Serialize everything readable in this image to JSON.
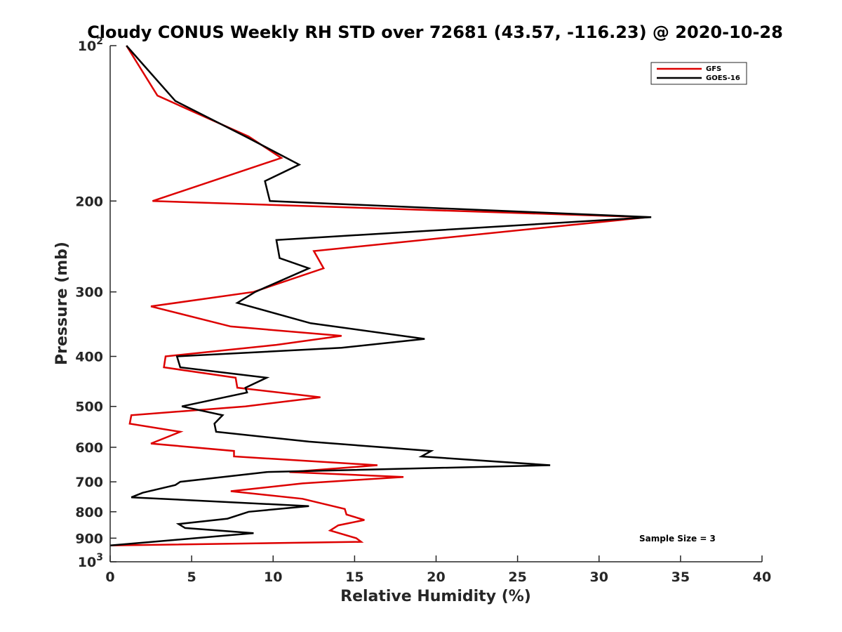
{
  "chart_data": {
    "type": "line",
    "title": "Cloudy CONUS Weekly RH STD over 72681 (43.57, -116.23) @ 2020-10-28",
    "xlabel": "Relative Humidity (%)",
    "ylabel": "Pressure (mb)",
    "xlim": [
      0,
      40
    ],
    "ylim": [
      100,
      1000
    ],
    "y_scale": "log",
    "y_reversed": true,
    "x_ticks": [
      "0",
      "5",
      "10",
      "15",
      "20",
      "25",
      "30",
      "35",
      "40"
    ],
    "y_ticks": [
      {
        "value": 100,
        "base": "10",
        "exp": "2"
      },
      {
        "value": 200,
        "label": "200"
      },
      {
        "value": 300,
        "label": "300"
      },
      {
        "value": 400,
        "label": "400"
      },
      {
        "value": 500,
        "label": "500"
      },
      {
        "value": 600,
        "label": "600"
      },
      {
        "value": 700,
        "label": "700"
      },
      {
        "value": 800,
        "label": "800"
      },
      {
        "value": 900,
        "label": "900"
      },
      {
        "value": 1000,
        "base": "10",
        "exp": "3"
      }
    ],
    "grid": false,
    "legend_position": "top-right",
    "annotation": "Sample Size = 3",
    "series": [
      {
        "name": "GFS",
        "color": "#dd0000",
        "points": [
          [
            1.0,
            100
          ],
          [
            2.9,
            125
          ],
          [
            8.5,
            150
          ],
          [
            10.5,
            165
          ],
          [
            2.6,
            200
          ],
          [
            33.0,
            215
          ],
          [
            12.5,
            250
          ],
          [
            13.1,
            270
          ],
          [
            8.8,
            300
          ],
          [
            2.5,
            320
          ],
          [
            7.4,
            350
          ],
          [
            14.2,
            365
          ],
          [
            10.2,
            380
          ],
          [
            3.4,
            400
          ],
          [
            3.3,
            420
          ],
          [
            7.7,
            440
          ],
          [
            7.8,
            460
          ],
          [
            12.9,
            480
          ],
          [
            8.3,
            500
          ],
          [
            1.3,
            520
          ],
          [
            1.2,
            540
          ],
          [
            4.3,
            560
          ],
          [
            2.5,
            590
          ],
          [
            7.6,
            610
          ],
          [
            7.6,
            625
          ],
          [
            16.4,
            650
          ],
          [
            11.0,
            670
          ],
          [
            18.0,
            685
          ],
          [
            11.8,
            705
          ],
          [
            7.4,
            730
          ],
          [
            11.8,
            755
          ],
          [
            14.4,
            790
          ],
          [
            14.5,
            810
          ],
          [
            15.6,
            830
          ],
          [
            14.0,
            850
          ],
          [
            13.5,
            870
          ],
          [
            15.1,
            900
          ],
          [
            15.4,
            915
          ],
          [
            0,
            930
          ]
        ]
      },
      {
        "name": "GOES-16",
        "color": "#000000",
        "points": [
          [
            1.0,
            100
          ],
          [
            4.0,
            128
          ],
          [
            8.3,
            150
          ],
          [
            11.6,
            170
          ],
          [
            9.5,
            183
          ],
          [
            9.8,
            200
          ],
          [
            33.2,
            215
          ],
          [
            10.2,
            238
          ],
          [
            10.4,
            258
          ],
          [
            12.2,
            270
          ],
          [
            8.9,
            300
          ],
          [
            7.8,
            315
          ],
          [
            12.3,
            345
          ],
          [
            19.3,
            370
          ],
          [
            14.2,
            385
          ],
          [
            4.1,
            400
          ],
          [
            4.3,
            420
          ],
          [
            9.6,
            440
          ],
          [
            8.3,
            460
          ],
          [
            8.4,
            470
          ],
          [
            4.4,
            500
          ],
          [
            6.9,
            520
          ],
          [
            6.4,
            540
          ],
          [
            6.5,
            560
          ],
          [
            12.2,
            585
          ],
          [
            19.7,
            610
          ],
          [
            19.1,
            625
          ],
          [
            27.0,
            650
          ],
          [
            9.6,
            670
          ],
          [
            4.3,
            700
          ],
          [
            4.0,
            710
          ],
          [
            2.0,
            735
          ],
          [
            1.3,
            750
          ],
          [
            12.2,
            780
          ],
          [
            8.5,
            800
          ],
          [
            7.2,
            825
          ],
          [
            4.2,
            845
          ],
          [
            4.6,
            860
          ],
          [
            8.8,
            880
          ],
          [
            0,
            930
          ]
        ]
      }
    ]
  }
}
